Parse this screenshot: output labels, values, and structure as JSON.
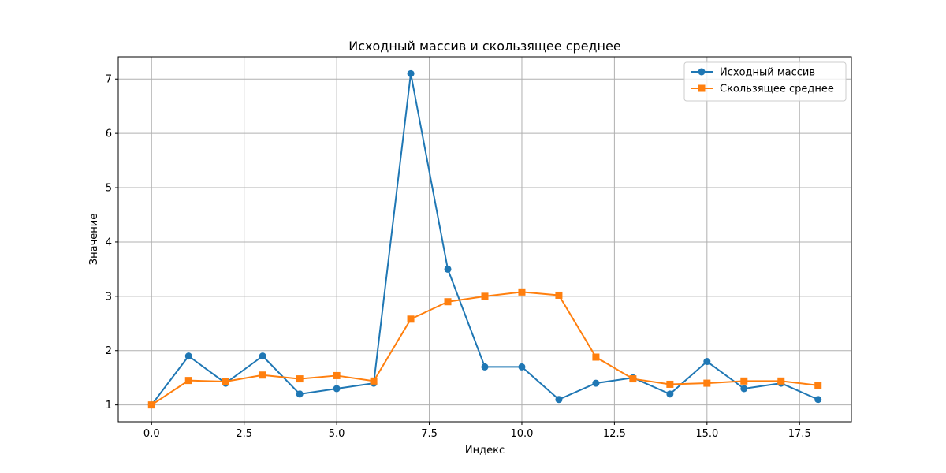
{
  "chart_data": {
    "type": "line",
    "title": "Исходный массив и скользящее среднее",
    "xlabel": "Индекс",
    "ylabel": "Значение",
    "xlim": [
      -0.9,
      18.9
    ],
    "ylim": [
      0.69,
      7.41
    ],
    "xticks": [
      0.0,
      2.5,
      5.0,
      7.5,
      10.0,
      12.5,
      15.0,
      17.5
    ],
    "xtick_labels": [
      "0.0",
      "2.5",
      "5.0",
      "7.5",
      "10.0",
      "12.5",
      "15.0",
      "17.5"
    ],
    "yticks": [
      1,
      2,
      3,
      4,
      5,
      6,
      7
    ],
    "ytick_labels": [
      "1",
      "2",
      "3",
      "4",
      "5",
      "6",
      "7"
    ],
    "grid": true,
    "legend_position": "top-right",
    "x": [
      0,
      1,
      2,
      3,
      4,
      5,
      6,
      7,
      8,
      9,
      10,
      11,
      12,
      13,
      14,
      15,
      16,
      17,
      18
    ],
    "series": [
      {
        "name": "Исходный массив",
        "color": "#1f77b4",
        "marker": "circle",
        "values": [
          1.0,
          1.9,
          1.4,
          1.9,
          1.2,
          1.3,
          1.4,
          7.1,
          3.5,
          1.7,
          1.7,
          1.1,
          1.4,
          1.5,
          1.2,
          1.8,
          1.3,
          1.4,
          1.1
        ]
      },
      {
        "name": "Скользящее среднее",
        "color": "#ff7f0e",
        "marker": "square",
        "values": [
          1.0,
          1.45,
          1.43,
          1.55,
          1.48,
          1.54,
          1.44,
          2.58,
          2.9,
          3.0,
          3.08,
          3.02,
          1.88,
          1.48,
          1.38,
          1.4,
          1.44,
          1.44,
          1.36
        ]
      }
    ]
  }
}
